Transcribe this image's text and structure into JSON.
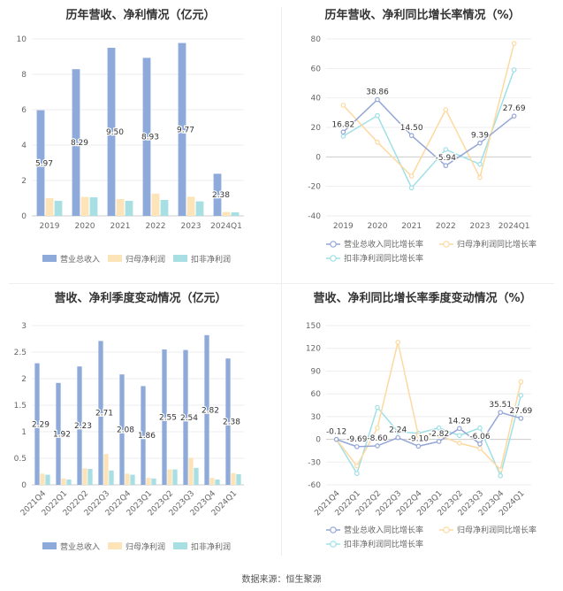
{
  "source": "数据来源：恒生聚源",
  "colors": {
    "revenue": "#8eaadb",
    "net_profit": "#fde3b8",
    "deducted_profit": "#a8dfe3",
    "growth_revenue": "#93a6d6",
    "growth_net": "#fdd9a0",
    "growth_deducted": "#9ee0e6"
  },
  "chart_data": [
    {
      "type": "bar",
      "title": "历年营收、净利情况（亿元）",
      "categories": [
        "2019",
        "2020",
        "2021",
        "2022",
        "2023",
        "2024Q1"
      ],
      "series": [
        {
          "name": "营业总收入",
          "values": [
            5.97,
            8.29,
            9.5,
            8.93,
            9.77,
            2.38
          ],
          "labels": [
            "5.97",
            "8.29",
            "9.50",
            "8.93",
            "9.77",
            "2.38"
          ]
        },
        {
          "name": "归母净利润",
          "values": [
            1.0,
            1.07,
            0.95,
            1.25,
            1.08,
            0.22
          ]
        },
        {
          "name": "扣非净利润",
          "values": [
            0.85,
            1.05,
            0.85,
            0.9,
            0.82,
            0.2
          ]
        }
      ],
      "ylim": [
        0,
        10
      ],
      "yticks": [
        "0",
        "2",
        "4",
        "6",
        "8",
        "10"
      ],
      "legend": "bottom"
    },
    {
      "type": "line",
      "title": "历年营收、净利同比增长率情况（%）",
      "categories": [
        "2019",
        "2020",
        "2021",
        "2022",
        "2023",
        "2024Q1"
      ],
      "series": [
        {
          "name": "营业总收入同比增长率",
          "values": [
            16.82,
            38.86,
            14.5,
            -5.94,
            9.39,
            27.69
          ],
          "labels": [
            "16.82",
            "38.86",
            "14.50",
            "-5.94",
            "9.39",
            "27.69"
          ]
        },
        {
          "name": "归母净利润同比增长率",
          "values": [
            35,
            10,
            -13,
            32,
            -14,
            77
          ]
        },
        {
          "name": "扣非净利润同比增长率",
          "values": [
            14,
            28,
            -21,
            5,
            -5,
            59
          ]
        }
      ],
      "ylim": [
        -40,
        80
      ],
      "yticks": [
        "-40",
        "-20",
        "0",
        "20",
        "40",
        "60",
        "80"
      ],
      "legend": "bottom"
    },
    {
      "type": "bar",
      "title": "营收、净利季度变动情况（亿元）",
      "categories": [
        "2021Q4",
        "2022Q1",
        "2022Q2",
        "2022Q3",
        "2022Q4",
        "2023Q1",
        "2023Q2",
        "2023Q3",
        "2023Q4",
        "2024Q1"
      ],
      "series": [
        {
          "name": "营业总收入",
          "values": [
            2.29,
            1.92,
            2.23,
            2.71,
            2.08,
            1.86,
            2.55,
            2.54,
            2.82,
            2.38
          ],
          "labels": [
            "2.29",
            "1.92",
            "2.23",
            "2.71",
            "2.08",
            "1.86",
            "2.55",
            "2.54",
            "2.82",
            "2.38"
          ]
        },
        {
          "name": "归母净利润",
          "values": [
            0.21,
            0.12,
            0.31,
            0.58,
            0.21,
            0.13,
            0.29,
            0.51,
            0.13,
            0.22
          ]
        },
        {
          "name": "扣非净利润",
          "values": [
            0.19,
            0.1,
            0.3,
            0.27,
            0.19,
            0.12,
            0.29,
            0.32,
            0.1,
            0.2
          ]
        }
      ],
      "ylim": [
        0,
        3
      ],
      "yticks": [
        "0",
        "0.5",
        "1",
        "1.5",
        "2",
        "2.5",
        "3"
      ],
      "legend": "bottom"
    },
    {
      "type": "line",
      "title": "营收、净利同比增长率季度变动情况（%）",
      "categories": [
        "2021Q4",
        "2022Q1",
        "2022Q2",
        "2022Q3",
        "2022Q4",
        "2023Q1",
        "2023Q2",
        "2023Q3",
        "2023Q4",
        "2024Q1"
      ],
      "series": [
        {
          "name": "营业总收入同比增长率",
          "values": [
            -0.12,
            -9.69,
            -8.6,
            2.24,
            -9.1,
            -2.82,
            14.29,
            -6.06,
            35.51,
            27.69
          ],
          "labels": [
            "-0.12",
            "-9.69",
            "-8.60",
            "2.24",
            "-9.10",
            "-2.82",
            "14.29",
            "-6.06",
            "35.51",
            "27.69"
          ]
        },
        {
          "name": "归母净利润同比增长率",
          "values": [
            0,
            -35,
            15,
            128,
            5,
            5,
            -5,
            -12,
            -40,
            76
          ]
        },
        {
          "name": "扣非净利润同比增长率",
          "values": [
            0,
            -45,
            42,
            10,
            8,
            15,
            5,
            15,
            -48,
            58
          ]
        }
      ],
      "ylim": [
        -60,
        150
      ],
      "yticks": [
        "-60",
        "-30",
        "0",
        "30",
        "60",
        "90",
        "120",
        "150"
      ],
      "legend": "bottom"
    }
  ]
}
